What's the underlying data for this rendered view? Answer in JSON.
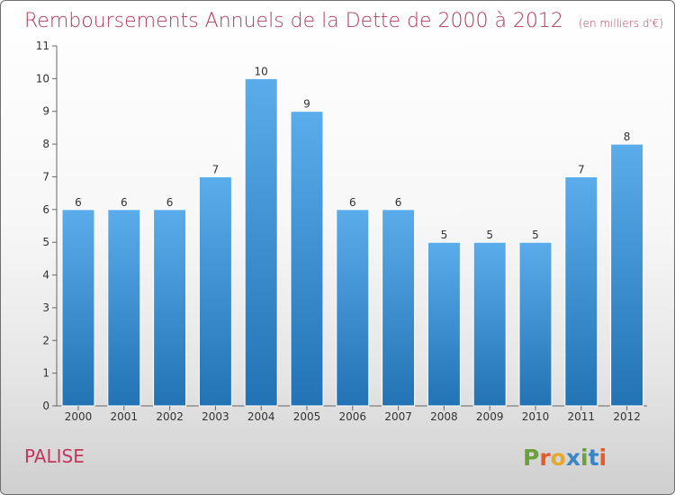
{
  "header": {
    "title": "Remboursements Annuels de la Dette de 2000 à 2012",
    "unit_note": "(en milliers d'€)"
  },
  "commune": "PALISE",
  "logo": {
    "letters": [
      "P",
      "r",
      "o",
      "x",
      "i",
      "t",
      "i"
    ],
    "colors": [
      "#6aa13b",
      "#e55b2b",
      "#e5a92b",
      "#3a86c5",
      "#6aa13b",
      "#3a86c5",
      "#e55b2b"
    ]
  },
  "colors": {
    "bar_top": "#5aacea",
    "bar_bottom": "#2273b5",
    "title": "#b03a5a"
  },
  "chart_data": {
    "type": "bar",
    "title": "Remboursements Annuels de la Dette de 2000 à 2012",
    "subtitle": "(en milliers d'€)",
    "xlabel": "",
    "ylabel": "",
    "categories": [
      "2000",
      "2001",
      "2002",
      "2003",
      "2004",
      "2005",
      "2006",
      "2007",
      "2008",
      "2009",
      "2010",
      "2011",
      "2012"
    ],
    "values": [
      6,
      6,
      6,
      7,
      10,
      9,
      6,
      6,
      5,
      5,
      5,
      7,
      8
    ],
    "ylim": [
      0,
      11
    ],
    "yticks": [
      "0",
      "1",
      "2",
      "3",
      "4",
      "5",
      "6",
      "7",
      "8",
      "9",
      "10",
      "11"
    ],
    "data_labels": [
      "6",
      "6",
      "6",
      "7",
      "10",
      "9",
      "6",
      "6",
      "5",
      "5",
      "5",
      "7",
      "8"
    ],
    "grid": false,
    "legend": "none"
  }
}
